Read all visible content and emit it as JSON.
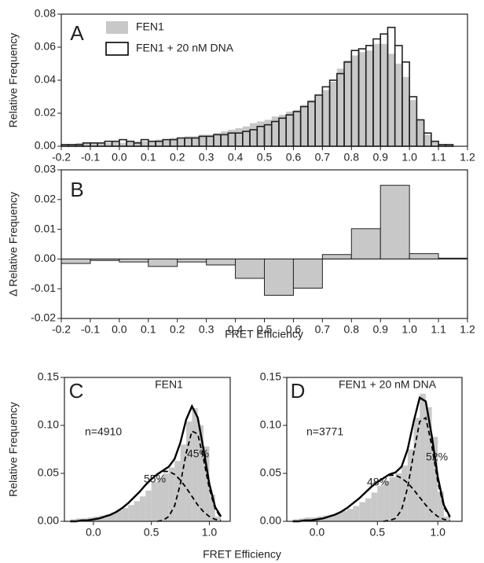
{
  "chart_data": [
    {
      "type": "histogram",
      "letter": "A",
      "ylabel": "Relative Frequency",
      "legend": "upper left",
      "bins": [
        -0.2,
        -0.175,
        -0.15,
        -0.125,
        -0.1,
        -0.075,
        -0.05,
        -0.025,
        0,
        0.025,
        0.05,
        0.075,
        0.1,
        0.125,
        0.15,
        0.175,
        0.2,
        0.225,
        0.25,
        0.275,
        0.3,
        0.325,
        0.35,
        0.375,
        0.4,
        0.425,
        0.45,
        0.475,
        0.5,
        0.525,
        0.55,
        0.575,
        0.6,
        0.625,
        0.65,
        0.675,
        0.7,
        0.725,
        0.75,
        0.775,
        0.8,
        0.825,
        0.85,
        0.875,
        0.9,
        0.925,
        0.95,
        0.975,
        1,
        1.025,
        1.05,
        1.075,
        1.1,
        1.125,
        1.15,
        1.175,
        1.2
      ],
      "series": [
        {
          "name": "FEN1",
          "color": "#c8c8c8",
          "style": "filled",
          "values": [
            0.001,
            0.001,
            0.002,
            0.002,
            0.002,
            0.002,
            0.002,
            0.003,
            0.002,
            0.003,
            0.003,
            0.003,
            0.003,
            0.004,
            0.004,
            0.005,
            0.005,
            0.006,
            0.006,
            0.007,
            0.007,
            0.008,
            0.009,
            0.01,
            0.011,
            0.012,
            0.014,
            0.015,
            0.016,
            0.018,
            0.019,
            0.021,
            0.022,
            0.025,
            0.028,
            0.031,
            0.034,
            0.039,
            0.047,
            0.052,
            0.055,
            0.057,
            0.058,
            0.062,
            0.062,
            0.056,
            0.05,
            0.042,
            0.028,
            0.016,
            0.007,
            0.003,
            0.001,
            0.001,
            0.0,
            0.0
          ]
        },
        {
          "name": "FEN1 + 20 nM DNA",
          "color": "#000000",
          "style": "outline",
          "values": [
            0.001,
            0.001,
            0.001,
            0.002,
            0.002,
            0.002,
            0.003,
            0.003,
            0.004,
            0.003,
            0.002,
            0.004,
            0.003,
            0.003,
            0.004,
            0.004,
            0.005,
            0.005,
            0.005,
            0.006,
            0.006,
            0.007,
            0.007,
            0.008,
            0.008,
            0.009,
            0.01,
            0.012,
            0.013,
            0.015,
            0.017,
            0.019,
            0.021,
            0.024,
            0.027,
            0.031,
            0.036,
            0.04,
            0.044,
            0.051,
            0.058,
            0.059,
            0.061,
            0.065,
            0.068,
            0.072,
            0.061,
            0.051,
            0.03,
            0.016,
            0.008,
            0.003,
            0.001,
            0.001,
            0.0,
            0.0
          ]
        }
      ],
      "xlim": [
        -0.2,
        1.2
      ],
      "ylim": [
        0,
        0.08
      ],
      "xticks": [
        -0.2,
        -0.1,
        {
          "value": 0,
          "label": "0.0"
        },
        0.1,
        0.2,
        0.3,
        0.4,
        0.5,
        0.6,
        0.7,
        0.8,
        0.9,
        {
          "value": 1,
          "label": "1.0"
        },
        1.1,
        1.2
      ],
      "yticks": [
        {
          "value": 0,
          "label": "0.00"
        },
        0.02,
        0.04,
        0.06,
        0.08
      ]
    },
    {
      "type": "histogram",
      "letter": "B",
      "ylabel": "Δ Relative Frequency",
      "xlabel": "FRET Efficiency",
      "bins": [
        -0.2,
        -0.1,
        0,
        0.1,
        0.2,
        0.3,
        0.4,
        0.5,
        0.6,
        0.7,
        0.8,
        0.9,
        1,
        1.1,
        1.2
      ],
      "series": [
        {
          "color": "#c8c8c8",
          "style": "filled",
          "values": [
            -0.0015,
            -0.0005,
            -0.001,
            -0.0025,
            -0.001,
            -0.002,
            -0.0065,
            -0.0122,
            -0.0098,
            0.0015,
            0.0102,
            0.0248,
            0.0018,
            0.0003
          ]
        }
      ],
      "xlim": [
        -0.2,
        1.2
      ],
      "ylim": [
        -0.02,
        0.03
      ],
      "xticks": [
        -0.2,
        -0.1,
        {
          "value": 0,
          "label": "0.0"
        },
        0.1,
        0.2,
        0.3,
        0.4,
        0.5,
        0.6,
        0.7,
        0.8,
        0.9,
        {
          "value": 1,
          "label": "1.0"
        },
        1.1,
        1.2
      ],
      "yticks": [
        -0.02,
        -0.01,
        {
          "value": 0,
          "label": "0.00"
        },
        0.01,
        0.02,
        0.03
      ]
    },
    {
      "type": "histogram_fit",
      "letter": "C",
      "title": "FEN1",
      "ylabel": "Relative Frequency",
      "xlabel": "FRET Efficiency",
      "annotations": [
        "n=4910",
        "55%",
        "45%"
      ],
      "bins": [
        -0.2,
        -0.15,
        -0.1,
        -0.05,
        0,
        0.05,
        0.1,
        0.15,
        0.2,
        0.25,
        0.3,
        0.35,
        0.4,
        0.45,
        0.5,
        0.55,
        0.6,
        0.65,
        0.7,
        0.75,
        0.8,
        0.85,
        0.9,
        0.95,
        1,
        1.05,
        1.1
      ],
      "values": [
        0.002,
        0.003,
        0.003,
        0.004,
        0.005,
        0.006,
        0.007,
        0.009,
        0.012,
        0.014,
        0.017,
        0.021,
        0.026,
        0.032,
        0.041,
        0.045,
        0.05,
        0.056,
        0.063,
        0.08,
        0.104,
        0.118,
        0.1,
        0.078,
        0.028,
        0.005
      ],
      "color": "#c8c8c8",
      "x": [
        -0.2,
        -0.15,
        -0.1,
        -0.05,
        0,
        0.05,
        0.1,
        0.15,
        0.2,
        0.25,
        0.3,
        0.35,
        0.4,
        0.45,
        0.5,
        0.55,
        0.6,
        0.65,
        0.7,
        0.75,
        0.8,
        0.85,
        0.9,
        0.95,
        1,
        1.05,
        1.1
      ],
      "series": [
        {
          "color": "#000000",
          "dash": false,
          "values": [
            0,
            0,
            0.001,
            0.001,
            0.002,
            0.003,
            0.005,
            0.007,
            0.01,
            0.014,
            0.019,
            0.025,
            0.031,
            0.038,
            0.044,
            0.049,
            0.053,
            0.057,
            0.065,
            0.082,
            0.106,
            0.12,
            0.108,
            0.075,
            0.039,
            0.015,
            0.005
          ]
        },
        {
          "color": "#000000",
          "dash": true,
          "values": [
            0,
            0,
            0.001,
            0.001,
            0.002,
            0.003,
            0.005,
            0.007,
            0.01,
            0.014,
            0.019,
            0.025,
            0.031,
            0.038,
            0.044,
            0.049,
            0.052,
            0.052,
            0.049,
            0.043,
            0.035,
            0.026,
            0.017,
            0.01,
            0.005,
            0.002,
            0.001
          ]
        },
        {
          "color": "#000000",
          "dash": true,
          "values": [
            null,
            null,
            null,
            null,
            null,
            null,
            null,
            null,
            null,
            null,
            null,
            null,
            null,
            null,
            null,
            0.0,
            0.001,
            0.005,
            0.016,
            0.039,
            0.071,
            0.094,
            0.091,
            0.065,
            0.034,
            0.013,
            0.004
          ]
        }
      ],
      "xlim": [
        -0.25,
        1.18
      ],
      "ylim": [
        0,
        0.15
      ],
      "xticks": [
        {
          "value": 0,
          "label": "0.0"
        },
        0.5,
        {
          "value": 1,
          "label": "1.0"
        }
      ],
      "yticks": [
        {
          "value": 0,
          "label": "0.00"
        },
        0.05,
        {
          "value": 0.1,
          "label": "0.10"
        },
        0.15
      ]
    },
    {
      "type": "histogram_fit",
      "letter": "D",
      "title": "FEN1 + 20 nM DNA",
      "annotations": [
        "n=3771",
        "48%",
        "52%"
      ],
      "bins": [
        -0.2,
        -0.15,
        -0.1,
        -0.05,
        0,
        0.05,
        0.1,
        0.15,
        0.2,
        0.25,
        0.3,
        0.35,
        0.4,
        0.45,
        0.5,
        0.55,
        0.6,
        0.65,
        0.7,
        0.75,
        0.8,
        0.85,
        0.9,
        0.95,
        1,
        1.05,
        1.1
      ],
      "values": [
        0.002,
        0.003,
        0.004,
        0.004,
        0.005,
        0.006,
        0.007,
        0.009,
        0.011,
        0.013,
        0.016,
        0.02,
        0.024,
        0.03,
        0.037,
        0.042,
        0.046,
        0.05,
        0.058,
        0.075,
        0.108,
        0.133,
        0.119,
        0.088,
        0.031,
        0.005
      ],
      "color": "#c8c8c8",
      "x": [
        -0.2,
        -0.15,
        -0.1,
        -0.05,
        0,
        0.05,
        0.1,
        0.15,
        0.2,
        0.25,
        0.3,
        0.35,
        0.4,
        0.45,
        0.5,
        0.55,
        0.6,
        0.65,
        0.7,
        0.75,
        0.8,
        0.85,
        0.9,
        0.95,
        1,
        1.05,
        1.1
      ],
      "series": [
        {
          "color": "#000000",
          "dash": false,
          "values": [
            0,
            0,
            0.001,
            0.001,
            0.002,
            0.003,
            0.005,
            0.007,
            0.01,
            0.014,
            0.019,
            0.024,
            0.03,
            0.036,
            0.041,
            0.045,
            0.049,
            0.051,
            0.057,
            0.075,
            0.104,
            0.129,
            0.125,
            0.089,
            0.046,
            0.017,
            0.005
          ]
        },
        {
          "color": "#000000",
          "dash": true,
          "values": [
            0,
            0,
            0.001,
            0.001,
            0.002,
            0.003,
            0.005,
            0.007,
            0.01,
            0.014,
            0.019,
            0.024,
            0.03,
            0.036,
            0.041,
            0.045,
            0.048,
            0.048,
            0.045,
            0.04,
            0.033,
            0.025,
            0.017,
            0.01,
            0.005,
            0.002,
            0.001
          ]
        },
        {
          "color": "#000000",
          "dash": true,
          "values": [
            null,
            null,
            null,
            null,
            null,
            null,
            null,
            null,
            null,
            null,
            null,
            null,
            null,
            null,
            null,
            0.0,
            0.001,
            0.003,
            0.012,
            0.035,
            0.071,
            0.104,
            0.108,
            0.079,
            0.041,
            0.015,
            0.004
          ]
        }
      ],
      "xlim": [
        -0.25,
        1.2
      ],
      "ylim": [
        0,
        0.15
      ],
      "xticks": [
        {
          "value": 0,
          "label": "0.0"
        },
        0.5,
        {
          "value": 1,
          "label": "1.0"
        }
      ],
      "yticks": [
        {
          "value": 0,
          "label": "0.00"
        },
        0.05,
        {
          "value": 0.1,
          "label": "0.10"
        },
        0.15
      ]
    }
  ]
}
